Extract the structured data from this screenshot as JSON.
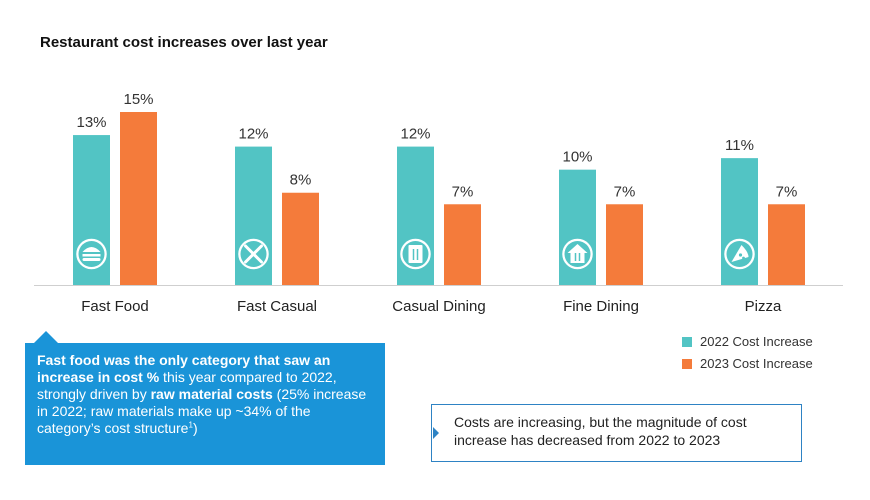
{
  "chart_data": {
    "type": "bar",
    "title": "Restaurant cost increases over last year",
    "categories": [
      "Fast Food",
      "Fast Casual",
      "Casual Dining",
      "Fine Dining",
      "Pizza"
    ],
    "category_icons": [
      "burger-icon",
      "fork-knife-icon",
      "menu-book-icon",
      "house-dining-icon",
      "pizza-slice-icon"
    ],
    "series": [
      {
        "name": "2022 Cost Increase",
        "values": [
          13,
          12,
          12,
          10,
          11
        ],
        "labels": [
          "13%",
          "12%",
          "12%",
          "10%",
          "11%"
        ],
        "color": "#52c4c4"
      },
      {
        "name": "2023 Cost Increase",
        "values": [
          15,
          8,
          7,
          7,
          7
        ],
        "labels": [
          "15%",
          "8%",
          "7%",
          "7%",
          "7%"
        ],
        "color": "#f47b3b"
      }
    ],
    "ylim": [
      0,
      15
    ],
    "grid": false,
    "legend": "bottom-right"
  },
  "callout": {
    "bold1": "Fast food was the only category that saw an increase in cost %",
    "text1": " this year compared to 2022, strongly driven by ",
    "bold2": "raw material costs",
    "text2": " (25% increase in 2022; raw materials make up ~34% of the category’s cost structure",
    "sup": "1",
    "text3": ")"
  },
  "note": "Costs are increasing, but the magnitude of cost increase has decreased from 2022 to 2023",
  "colors": {
    "accent_blue": "#1a94d8",
    "note_border": "#2e83c4"
  }
}
